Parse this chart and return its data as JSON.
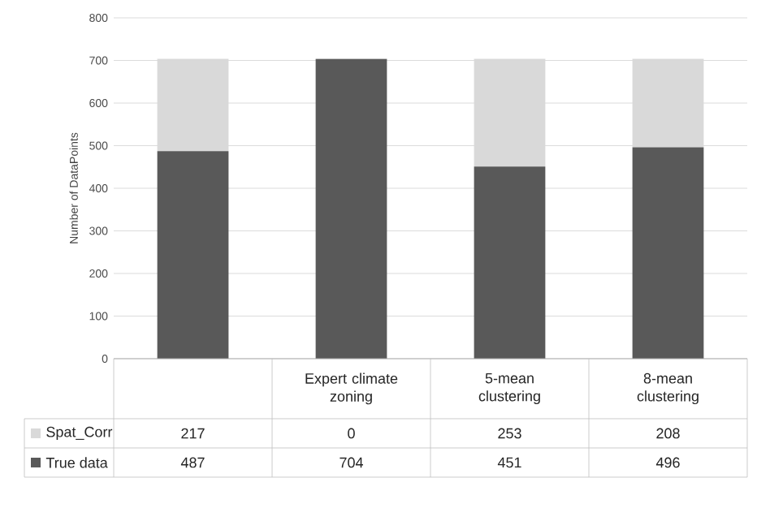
{
  "chart_data": {
    "type": "bar",
    "stacked": true,
    "ylabel": "Number of DataPoints",
    "categories": [
      null,
      "Expert climate zoning",
      "5-mean clustering",
      "8-mean clustering"
    ],
    "series": [
      {
        "name": "True data",
        "color": "#595959",
        "values": [
          487,
          704,
          451,
          496
        ]
      },
      {
        "name": "Spat_Corr",
        "color": "#d9d9d9",
        "values": [
          217,
          0,
          253,
          208
        ]
      }
    ],
    "ylim": [
      0,
      800
    ],
    "yticks": [
      0,
      100,
      200,
      300,
      400,
      500,
      600,
      700,
      800
    ],
    "grid": "y",
    "data_labels": true,
    "legend": "bottom"
  }
}
